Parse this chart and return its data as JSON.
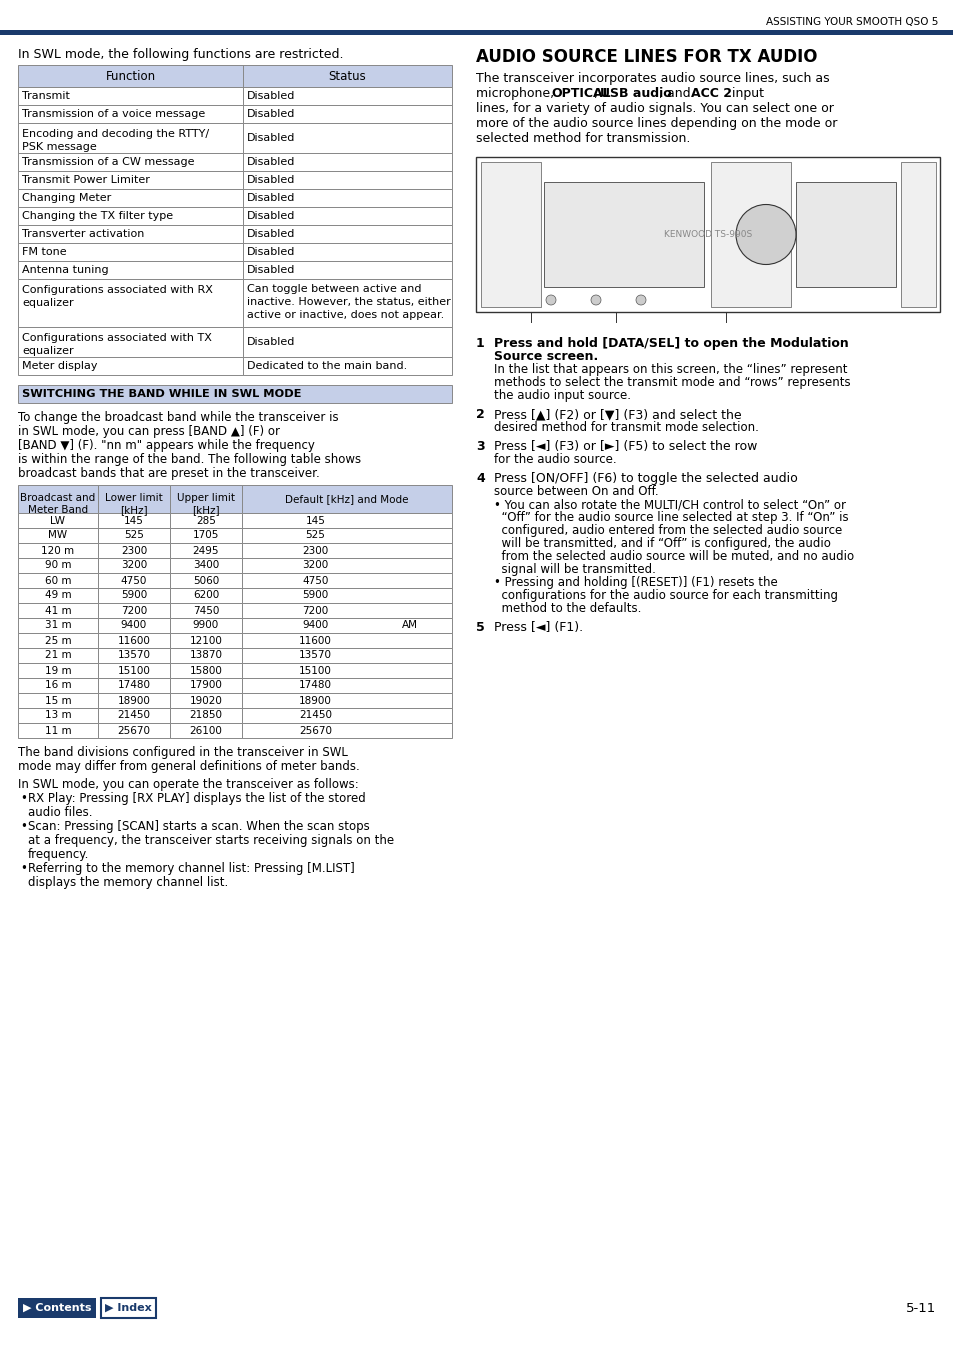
{
  "page_header": "ASSISTING YOUR SMOOTH QSO 5",
  "header_line_color": "#1a3a6b",
  "bg_color": "#ffffff",
  "page_number": "5-11",
  "swl_intro": "In SWL mode, the following functions are restricted.",
  "table1_header_bg": "#c5cfe8",
  "table1_rows": [
    [
      "Transmit",
      "Disabled"
    ],
    [
      "Transmission of a voice message",
      "Disabled"
    ],
    [
      "Encoding and decoding the RTTY/\nPSK message",
      "Disabled"
    ],
    [
      "Transmission of a CW message",
      "Disabled"
    ],
    [
      "Transmit Power Limiter",
      "Disabled"
    ],
    [
      "Changing Meter",
      "Disabled"
    ],
    [
      "Changing the TX filter type",
      "Disabled"
    ],
    [
      "Transverter activation",
      "Disabled"
    ],
    [
      "FM tone",
      "Disabled"
    ],
    [
      "Antenna tuning",
      "Disabled"
    ],
    [
      "Configurations associated with RX\nequalizer",
      "Can toggle between active and\ninactive. However, the status, either\nactive or inactive, does not appear."
    ],
    [
      "Configurations associated with TX\nequalizer",
      "Disabled"
    ],
    [
      "Meter display",
      "Dedicated to the main band."
    ]
  ],
  "swl_section_header": "SWITCHING THE BAND WHILE IN SWL MODE",
  "swl_section_bg": "#c5cfe8",
  "swl_body_lines": [
    "To change the broadcast band while the transceiver is",
    "in SWL mode, you can press [BAND ▲] (F) or",
    "[BAND ▼] (F). \"nn m\" appears while the frequency",
    "is within the range of the band. The following table shows",
    "broadcast bands that are preset in the transceiver."
  ],
  "table2_header": [
    "Broadcast and\nMeter Band",
    "Lower limit\n[kHz]",
    "Upper limit\n[kHz]",
    "Default [kHz] and Mode"
  ],
  "table2_header_bg": "#c5cfe8",
  "table2_rows": [
    [
      "LW",
      "145",
      "285",
      "145",
      ""
    ],
    [
      "MW",
      "525",
      "1705",
      "525",
      ""
    ],
    [
      "120 m",
      "2300",
      "2495",
      "2300",
      ""
    ],
    [
      "90 m",
      "3200",
      "3400",
      "3200",
      ""
    ],
    [
      "60 m",
      "4750",
      "5060",
      "4750",
      ""
    ],
    [
      "49 m",
      "5900",
      "6200",
      "5900",
      ""
    ],
    [
      "41 m",
      "7200",
      "7450",
      "7200",
      ""
    ],
    [
      "31 m",
      "9400",
      "9900",
      "9400",
      "AM"
    ],
    [
      "25 m",
      "11600",
      "12100",
      "11600",
      ""
    ],
    [
      "21 m",
      "13570",
      "13870",
      "13570",
      ""
    ],
    [
      "19 m",
      "15100",
      "15800",
      "15100",
      ""
    ],
    [
      "16 m",
      "17480",
      "17900",
      "17480",
      ""
    ],
    [
      "15 m",
      "18900",
      "19020",
      "18900",
      ""
    ],
    [
      "13 m",
      "21450",
      "21850",
      "21450",
      ""
    ],
    [
      "11 m",
      "25670",
      "26100",
      "25670",
      ""
    ]
  ],
  "swl_footer1a": "The band divisions configured in the transceiver in SWL",
  "swl_footer1b": "mode may differ from general definitions of meter bands.",
  "swl_footer2": "In SWL mode, you can operate the transceiver as follows:",
  "swl_bullets": [
    [
      "RX Play: Pressing [RX PLAY] displays the list of the stored",
      "audio files."
    ],
    [
      "Scan: Pressing [SCAN] starts a scan. When the scan stops",
      "at a frequency, the transceiver starts receiving signals on the",
      "frequency."
    ],
    [
      "Referring to the memory channel list: Pressing [M.LIST]",
      "displays the memory channel list."
    ]
  ],
  "right_section_header": "AUDIO SOURCE LINES FOR TX AUDIO",
  "right_intro_lines": [
    [
      "The transceiver incorporates audio source lines, such as"
    ],
    [
      "microphone, ",
      "OPTICAL",
      ", ",
      "USB audio",
      ", and ",
      "ACC 2",
      " input"
    ],
    [
      "lines, for a variety of audio signals. You can select one or"
    ],
    [
      "more of the audio source lines depending on the mode or"
    ],
    [
      "selected method for transmission."
    ]
  ],
  "right_steps": [
    {
      "num": "1",
      "bold_start": "Press and hold [DATA/SEL] to open the Modulation\nSource screen.",
      "normal": "\nIn the list that appears on this screen, the “lines” represent\nmethods to select the transmit mode and “rows” represents\nthe audio input source.",
      "line_count": 6
    },
    {
      "num": "2",
      "bold_start": "",
      "normal": "Press [▲] (F2) or [▼] (F3) and select the\ndesired method for transmit mode selection.",
      "line_count": 2
    },
    {
      "num": "3",
      "bold_start": "",
      "normal": "Press [◄] (F3) or [►] (F5) to select the row\nfor the audio source.",
      "line_count": 2
    },
    {
      "num": "4",
      "bold_start": "",
      "normal": "Press [ON/OFF] (F6) to toggle the selected audio\nsource between On and Off.\n• You can also rotate the MULTI/CH control to select “On” or\n  “Off” for the audio source line selected at step 3. If “On” is\n  configured, audio entered from the selected audio source\n  will be transmitted, and if “Off” is configured, the audio\n  from the selected audio source will be muted, and no audio\n  signal will be transmitted.\n• Pressing and holding [(RESET)] (F1) resets the\n  configurations for the audio source for each transmitting\n  method to the defaults.",
      "line_count": 11
    },
    {
      "num": "5",
      "bold_start": "",
      "normal": "Press [◄] (F1).",
      "line_count": 1
    }
  ],
  "contents_btn_color": "#1a3a6b",
  "table_border_color": "#888888",
  "text_color": "#000000"
}
